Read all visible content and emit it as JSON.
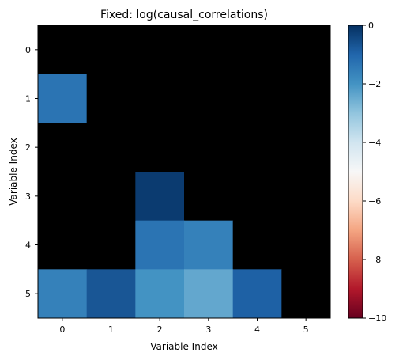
{
  "chart_data": {
    "type": "heatmap",
    "title": "Fixed: log(causal_correlations)",
    "xlabel": "Variable Index",
    "ylabel": "Variable Index",
    "x_categories": [
      "0",
      "1",
      "2",
      "3",
      "4",
      "5"
    ],
    "y_categories": [
      "0",
      "1",
      "2",
      "3",
      "4",
      "5"
    ],
    "masked_color": "#000000",
    "values": [
      [
        null,
        null,
        null,
        null,
        null,
        null
      ],
      [
        -1.3,
        null,
        null,
        null,
        null,
        null
      ],
      [
        null,
        null,
        null,
        null,
        null,
        null
      ],
      [
        null,
        null,
        -0.2,
        null,
        null,
        null
      ],
      [
        null,
        null,
        -1.3,
        -1.6,
        null,
        null
      ],
      [
        -1.6,
        -0.7,
        -2.0,
        -2.4,
        -0.9,
        null
      ]
    ],
    "colorbar": {
      "colormap": "RdBu",
      "vmin": -10,
      "vmax": 0,
      "ticks": [
        0,
        -2,
        -4,
        -6,
        -8,
        -10
      ],
      "tick_labels": [
        "0",
        "−2",
        "−4",
        "−6",
        "−8",
        "−10"
      ]
    }
  }
}
